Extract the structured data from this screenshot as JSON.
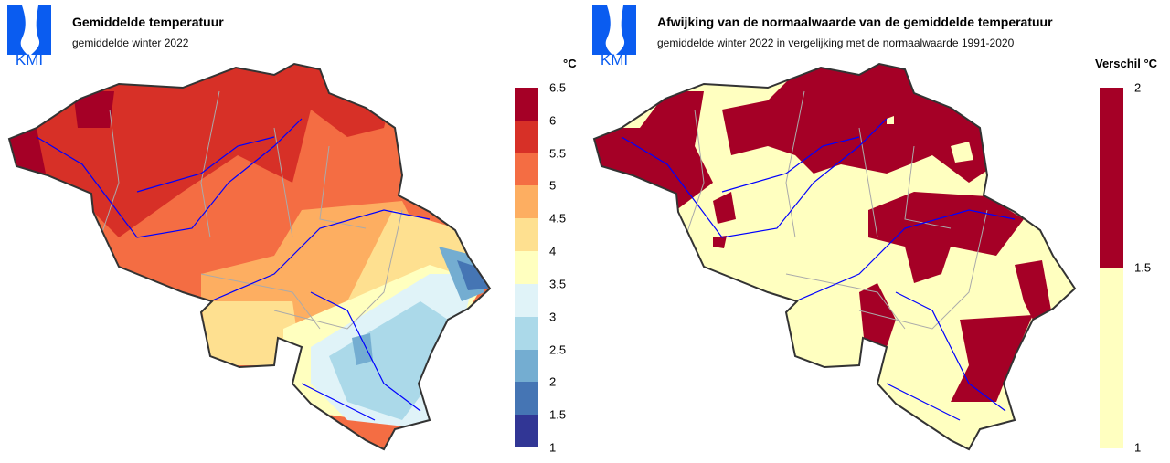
{
  "left_panel": {
    "logo_text": "KMI",
    "title": "Gemiddelde temperatuur",
    "subtitle": "gemiddelde winter 2022",
    "legend": {
      "unit": "°C",
      "ticks": [
        "6.5",
        "6",
        "5.5",
        "5",
        "4.5",
        "4",
        "3.5",
        "3",
        "2.5",
        "2",
        "1.5",
        "1"
      ],
      "colors": [
        "#a50026",
        "#d73027",
        "#f46d43",
        "#fdae61",
        "#fee090",
        "#ffffbf",
        "#e0f3f8",
        "#abd9e9",
        "#74add1",
        "#4575b4",
        "#313695"
      ]
    }
  },
  "right_panel": {
    "logo_text": "KMI",
    "title": "Afwijking van de normaalwaarde van de gemiddelde temperatuur",
    "subtitle": "gemiddelde winter 2022 in vergelijking met de normaalwaarde 1991-2020",
    "legend": {
      "unit": "Verschil °C",
      "ticks": [
        "2",
        "1.5",
        "1"
      ],
      "colors": [
        "#a50026",
        "#ffffc0"
      ]
    }
  },
  "colors": {
    "logo": "#0a5cf0",
    "border": "#333333",
    "river": "#0000ff",
    "province": "#aaaaaa"
  }
}
